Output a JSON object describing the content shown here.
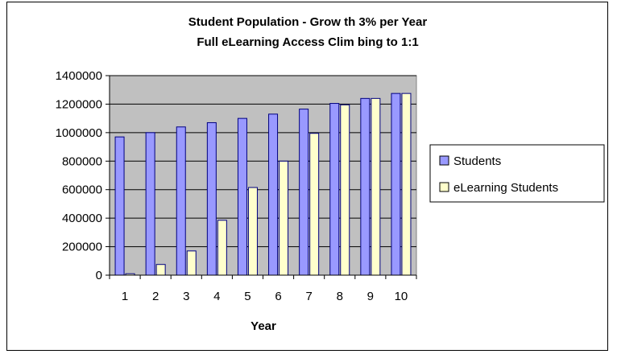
{
  "chart_data": {
    "type": "bar",
    "title": "Student Population - Grow th 3% per Year",
    "subtitle": "Full eLearning Access Clim bing to 1:1",
    "xlabel": "Year",
    "ylabel": "",
    "categories": [
      "1",
      "2",
      "3",
      "4",
      "5",
      "6",
      "7",
      "8",
      "9",
      "10"
    ],
    "series": [
      {
        "name": "Students",
        "color": "#9999FF",
        "values": [
          970000,
          1000000,
          1040000,
          1070000,
          1100000,
          1130000,
          1165000,
          1205000,
          1240000,
          1275000
        ]
      },
      {
        "name": "eLearning Students",
        "color": "#FFFFCC",
        "values": [
          10000,
          75000,
          170000,
          385000,
          615000,
          800000,
          995000,
          1195000,
          1240000,
          1275000
        ]
      }
    ],
    "ylim": [
      0,
      1400000
    ],
    "yticks": [
      "0",
      "200000",
      "400000",
      "600000",
      "800000",
      "1000000",
      "1200000",
      "1400000"
    ],
    "grid": true,
    "plot_background": "#C0C0C0",
    "legend_position": "right"
  }
}
